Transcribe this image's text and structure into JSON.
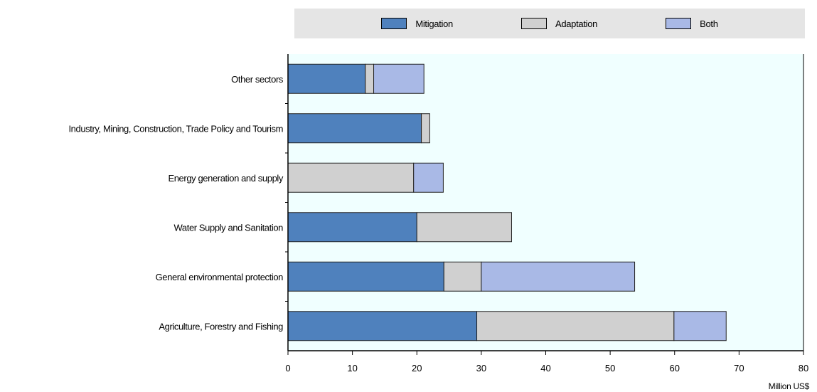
{
  "chart_data": {
    "type": "bar",
    "orientation": "horizontal",
    "stacked": true,
    "categories": [
      "Other sectors",
      "Industry, Mining, Construction, Trade Policy and Tourism",
      "Energy generation and supply",
      "Water Supply and Sanitation",
      "General environmental protection",
      "Agriculture, Forestry and Fishing"
    ],
    "series": [
      {
        "name": "Mitigation",
        "color": "#4f81bd",
        "values": [
          12,
          20.7,
          0,
          20,
          24.2,
          29.3
        ]
      },
      {
        "name": "Adaptation",
        "color": "#d0d0d0",
        "values": [
          1.3,
          1.3,
          19.5,
          14.7,
          5.8,
          30.6
        ]
      },
      {
        "name": "Both",
        "color": "#a9b9e6",
        "values": [
          7.8,
          0,
          4.6,
          0,
          23.8,
          8.1
        ]
      }
    ],
    "xlabel": "Million US$",
    "xlim": [
      0,
      80
    ],
    "xticks": [
      0,
      10,
      20,
      30,
      40,
      50,
      60,
      70,
      80
    ],
    "grid": false,
    "legend_position": "top",
    "plot_background": "#f0ffff"
  }
}
